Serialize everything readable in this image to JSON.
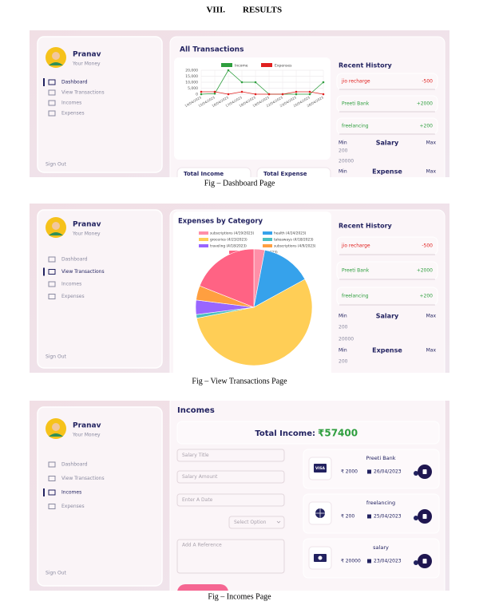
{
  "heading": {
    "number": "VIII.",
    "title": "RESULTS"
  },
  "figures": [
    {
      "caption": "Fig – Dashboard Page",
      "sidebar": {
        "name": "Pranav",
        "tagline": "Your Money",
        "menu": [
          "Dashboard",
          "View Transactions",
          "Incomes",
          "Expenses"
        ],
        "active_item": 0,
        "sign_out": "Sign Out"
      },
      "main": {
        "chart_data": {
          "type": "line",
          "title": "All Transactions",
          "x": [
            "14/04/2023",
            "15/04/2023",
            "16/04/2023",
            "17/04/2023",
            "18/04/2023",
            "19/04/2023",
            "22/04/2023",
            "23/04/2023",
            "25/04/2023",
            "26/04/2023"
          ],
          "series": [
            {
              "name": "Income",
              "color": "#2e9e3e",
              "values": [
                0,
                500,
                20000,
                10000,
                10000,
                0,
                0,
                0,
                0,
                10000
              ]
            },
            {
              "name": "Expenses",
              "color": "#e0201f",
              "values": [
                2000,
                2000,
                0,
                2000,
                0,
                0,
                0,
                2000,
                2000,
                0
              ]
            }
          ],
          "ylim": [
            0,
            20000
          ],
          "yticks": [
            0,
            {
              "value": 5000,
              "label": "5,000"
            },
            {
              "value": 10000,
              "label": "10,000"
            },
            {
              "value": 15000,
              "label": "15,000"
            },
            {
              "value": 20000,
              "label": "20,000"
            }
          ],
          "grid": true
        },
        "cards": [
          "Total Income",
          "Total Expense"
        ]
      },
      "history": {
        "title": "Recent History",
        "items": [
          {
            "name": "jio recharge",
            "amount": "-500"
          },
          {
            "name": "Preeti Bank",
            "amount": "+2000"
          },
          {
            "name": "freelancing",
            "amount": "+200"
          }
        ],
        "salary": {
          "min": "Min",
          "label": "Salary",
          "max": "Max",
          "values": [
            "200",
            "20000"
          ]
        },
        "expense": {
          "min": "Min",
          "label": "Expense",
          "max": "Max",
          "values": []
        }
      }
    },
    {
      "caption": "Fig – View Transactions Page",
      "sidebar": {
        "name": "Pranav",
        "tagline": "Your Money",
        "menu": [
          "Dashboard",
          "View Transactions",
          "Incomes",
          "Expenses"
        ],
        "active_item": 1,
        "sign_out": "Sign Out"
      },
      "main": {
        "chart_data": {
          "type": "pie",
          "title": "Expenses by Category",
          "categories": [
            "subscriptions (4/19/2023)",
            "health (4/24/2023)",
            "groceries (4/23/2023)",
            "takeaways (4/18/2023)",
            "traveling (4/18/2023)",
            "subscriptions (4/9/2023)",
            "groceries (4/17/2023)"
          ],
          "values": [
            3,
            14,
            55,
            1,
            4,
            4,
            19
          ],
          "colors": [
            "#ff8fa8",
            "#36a2eb",
            "#ffce56",
            "#4bc0c0",
            "#9966ff",
            "#ff9f40",
            "#ff6384"
          ]
        }
      },
      "history": {
        "title": "Recent History",
        "items": [
          {
            "name": "jio recharge",
            "amount": "-500"
          },
          {
            "name": "Preeti Bank",
            "amount": "+2000"
          },
          {
            "name": "freelancing",
            "amount": "+200"
          }
        ],
        "salary": {
          "min": "Min",
          "label": "Salary",
          "max": "Max",
          "values": [
            "200",
            "20000"
          ]
        },
        "expense": {
          "min": "Min",
          "label": "Expense",
          "max": "Max",
          "values": [
            "200"
          ]
        }
      }
    },
    {
      "caption": "Fig – Incomes Page",
      "sidebar": {
        "name": "Pranav",
        "tagline": "Your Money",
        "menu": [
          "Dashboard",
          "View Transactions",
          "Incomes",
          "Expenses"
        ],
        "active_item": 2,
        "sign_out": "Sign Out"
      },
      "incomes": {
        "title": "Incomes",
        "total_label": "Total Income:",
        "total_value": "₹57400",
        "form": {
          "fields": [
            "Salary Title",
            "Salary Amount",
            "Enter A Date"
          ],
          "select": "Select Option",
          "reference": "Add A Reference"
        },
        "items": [
          {
            "icon": "VISA",
            "title": "Preeti Bank",
            "amount": "₹ 2000",
            "date": "26/04/2023"
          },
          {
            "title": "freelancing",
            "amount": "₹ 200",
            "date": "25/04/2023"
          },
          {
            "title": "salary",
            "amount": "₹ 20000",
            "date": "23/04/2023"
          }
        ]
      }
    }
  ]
}
